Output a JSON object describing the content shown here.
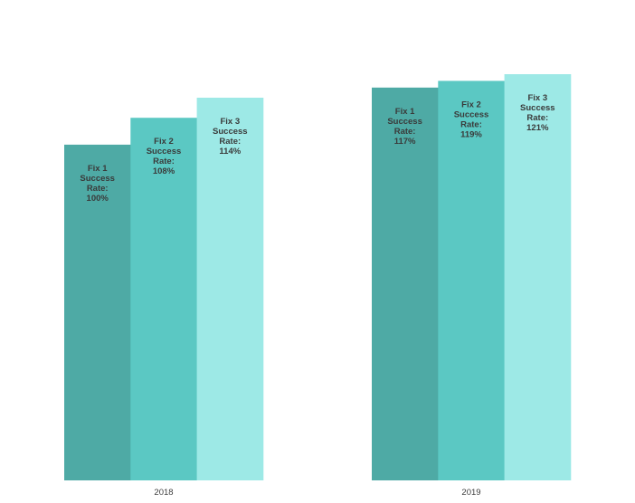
{
  "chart_data": {
    "type": "bar",
    "title": "",
    "xlabel": "",
    "ylabel": "",
    "categories": [
      "2018",
      "2019"
    ],
    "series": [
      {
        "name": "Fix 1",
        "values": [
          100,
          117
        ],
        "color": "#4eaaa5",
        "labels": [
          [
            "Fix 1",
            "Success",
            "Rate:",
            "100%"
          ],
          [
            "Fix 1",
            "Success",
            "Rate:",
            "117%"
          ]
        ]
      },
      {
        "name": "Fix 2",
        "values": [
          108,
          119
        ],
        "color": "#5bc8c3",
        "labels": [
          [
            "Fix 2",
            "Success",
            "Rate:",
            "108%"
          ],
          [
            "Fix 2",
            "Success",
            "Rate:",
            "119%"
          ]
        ]
      },
      {
        "name": "Fix 3",
        "values": [
          114,
          121
        ],
        "color": "#9de9e6",
        "labels": [
          [
            "Fix 3",
            "Success",
            "Rate:",
            "114%"
          ],
          [
            "Fix 3",
            "Success",
            "Rate:",
            "121%"
          ]
        ]
      }
    ],
    "ylim": [
      0,
      121
    ],
    "grid": false,
    "legend": "none"
  }
}
